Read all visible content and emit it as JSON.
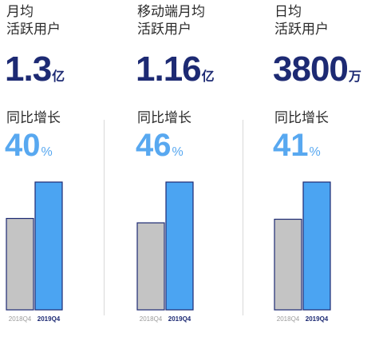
{
  "panels": [
    {
      "title_line1": "月均",
      "title_line2": "活跃用户",
      "metric": "1.3",
      "unit": "亿",
      "growth_label": "同比增长",
      "growth_value": "40",
      "growth_unit": "%"
    },
    {
      "title_line1": "移动端月均",
      "title_line2": "活跃用户",
      "metric": "1.16",
      "unit": "亿",
      "growth_label": "同比增长",
      "growth_value": "46",
      "growth_unit": "%"
    },
    {
      "title_line1": "日均",
      "title_line2": "活跃用户",
      "metric": "3800",
      "unit": "万",
      "growth_label": "同比增长",
      "growth_value": "41",
      "growth_unit": "%"
    }
  ],
  "colors": {
    "bar_2018": "#c4c4c4",
    "bar_2019": "#4ba4f2",
    "bar_outline": "#1d2a73",
    "growth": "#58a8f0",
    "metric": "#1d2a73"
  },
  "chart_data": [
    {
      "type": "bar",
      "title": "月均活跃用户",
      "categories": [
        "2018Q4",
        "2019Q4"
      ],
      "values": [
        0.93,
        1.3
      ],
      "unit": "亿"
    },
    {
      "type": "bar",
      "title": "移动端月均活跃用户",
      "categories": [
        "2018Q4",
        "2019Q4"
      ],
      "values": [
        0.79,
        1.16
      ],
      "unit": "亿"
    },
    {
      "type": "bar",
      "title": "日均活跃用户",
      "categories": [
        "2018Q4",
        "2019Q4"
      ],
      "values": [
        2695,
        3800
      ],
      "unit": "万"
    }
  ]
}
